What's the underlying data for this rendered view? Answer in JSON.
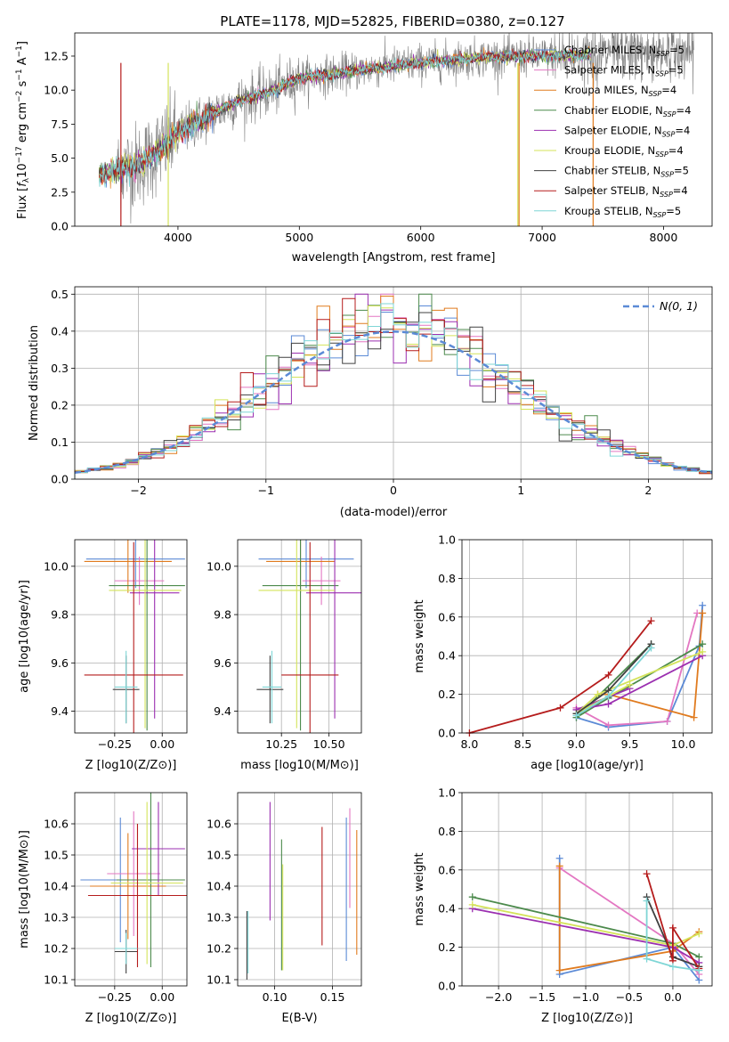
{
  "figure": {
    "title": "PLATE=1178, MJD=52825, FIBERID=0380, z=0.127"
  },
  "colors": {
    "Chabrier MILES": "#5b8ad6",
    "Salpeter MILES": "#e377c2",
    "Kroupa MILES": "#e07b1f",
    "Chabrier ELODIE": "#4c8a4c",
    "Salpeter ELODIE": "#9b2fb0",
    "Kroupa ELODIE": "#d4e35a",
    "Chabrier STELIB": "#404040",
    "Salpeter STELIB": "#b51c1c",
    "Kroupa STELIB": "#7fd6d6",
    "normal": "#5b8ad6",
    "data": "#808080"
  },
  "legend_spectrum": [
    {
      "model": "Chabrier MILES",
      "nssp": "5"
    },
    {
      "model": "Salpeter MILES",
      "nssp": "5"
    },
    {
      "model": "Kroupa MILES",
      "nssp": "4"
    },
    {
      "model": "Chabrier ELODIE",
      "nssp": "4"
    },
    {
      "model": "Salpeter ELODIE",
      "nssp": "4"
    },
    {
      "model": "Kroupa ELODIE",
      "nssp": "4"
    },
    {
      "model": "Chabrier STELIB",
      "nssp": "5"
    },
    {
      "model": "Salpeter STELIB",
      "nssp": "4"
    },
    {
      "model": "Kroupa STELIB",
      "nssp": "5"
    }
  ],
  "chart_data": [
    {
      "type": "line",
      "panel": "spectrum",
      "title": "PLATE=1178, MJD=52825, FIBERID=0380, z=0.127",
      "xlabel": "wavelength [Angstrom, rest frame]",
      "ylabel": "Flux [f_λ 10^-17 erg cm^-2 s^-1 A^-1]",
      "xlim": [
        3150,
        8400
      ],
      "ylim": [
        0,
        14.2
      ],
      "xticks": [
        4000,
        5000,
        6000,
        7000,
        8000
      ],
      "yticks": [
        0.0,
        2.5,
        5.0,
        7.5,
        10.0,
        12.5
      ],
      "continuum": [
        [
          3400,
          3.9
        ],
        [
          3700,
          4.6
        ],
        [
          3900,
          6.0
        ],
        [
          4000,
          6.8
        ],
        [
          4200,
          7.9
        ],
        [
          4500,
          9.2
        ],
        [
          4800,
          10.0
        ],
        [
          5000,
          10.9
        ],
        [
          5300,
          11.2
        ],
        [
          5600,
          11.6
        ],
        [
          6000,
          12.0
        ],
        [
          6500,
          12.4
        ],
        [
          7000,
          12.5
        ],
        [
          7500,
          12.6
        ],
        [
          8000,
          12.8
        ],
        [
          8200,
          12.7
        ]
      ],
      "model_range": [
        3350,
        7400
      ],
      "data_range": [
        3500,
        8250
      ]
    },
    {
      "type": "histogram",
      "panel": "residuals",
      "xlabel": "(data-model)/error",
      "ylabel": "Normed distribution",
      "xlim": [
        -2.5,
        2.5
      ],
      "ylim": [
        0,
        0.52
      ],
      "xticks": [
        -2,
        -1,
        0,
        1,
        2
      ],
      "yticks": [
        0.0,
        0.1,
        0.2,
        0.3,
        0.4,
        0.5
      ],
      "bin_width": 0.1,
      "normal_label": "N(0, 1)",
      "grid": true,
      "legend": "top-right"
    },
    {
      "type": "errorbar",
      "panel": "age-vs-Z",
      "xlabel": "Z [log10(Z/Z⊙)]",
      "ylabel": "age  [log10(age/yr)]",
      "xlim": [
        -0.46,
        0.13
      ],
      "ylim": [
        9.31,
        10.11
      ],
      "xticks": [
        -0.25,
        0.0
      ],
      "yticks": [
        9.4,
        9.6,
        9.8,
        10.0
      ],
      "points": [
        {
          "model": "Chabrier MILES",
          "x": -0.14,
          "xerr": 0.26,
          "y": 10.03,
          "yerr": 0.12
        },
        {
          "model": "Salpeter MILES",
          "x": -0.12,
          "xerr": 0.13,
          "y": 9.94,
          "yerr": 0.1
        },
        {
          "model": "Kroupa MILES",
          "x": -0.18,
          "xerr": 0.23,
          "y": 10.02,
          "yerr": 0.13
        },
        {
          "model": "Chabrier ELODIE",
          "x": -0.08,
          "xerr": 0.2,
          "y": 9.92,
          "yerr": 0.6
        },
        {
          "model": "Salpeter ELODIE",
          "x": -0.04,
          "xerr": 0.13,
          "y": 9.89,
          "yerr": 0.52
        },
        {
          "model": "Kroupa ELODIE",
          "x": -0.09,
          "xerr": 0.19,
          "y": 9.9,
          "yerr": 0.57
        },
        {
          "model": "Chabrier STELIB",
          "x": -0.19,
          "xerr": 0.07,
          "y": 9.49,
          "yerr": 0.14
        },
        {
          "model": "Salpeter STELIB",
          "x": -0.15,
          "xerr": 0.26,
          "y": 9.55,
          "yerr": 0.55
        },
        {
          "model": "Kroupa STELIB",
          "x": -0.19,
          "xerr": 0.06,
          "y": 9.5,
          "yerr": 0.15
        }
      ]
    },
    {
      "type": "errorbar",
      "panel": "age-vs-mass",
      "xlabel": "mass [log10(M/M⊙)]",
      "ylabel": "",
      "xlim": [
        10.02,
        10.67
      ],
      "ylim": [
        9.31,
        10.11
      ],
      "xticks": [
        10.25,
        10.5
      ],
      "yticks": [
        9.4,
        9.6,
        9.8,
        10.0
      ],
      "points": [
        {
          "model": "Chabrier MILES",
          "x": 10.38,
          "xerr": 0.25,
          "y": 10.03,
          "yerr": 0.12
        },
        {
          "model": "Salpeter MILES",
          "x": 10.46,
          "xerr": 0.1,
          "y": 9.94,
          "yerr": 0.1
        },
        {
          "model": "Kroupa MILES",
          "x": 10.35,
          "xerr": 0.18,
          "y": 10.02,
          "yerr": 0.13
        },
        {
          "model": "Chabrier ELODIE",
          "x": 10.35,
          "xerr": 0.2,
          "y": 9.92,
          "yerr": 0.6
        },
        {
          "model": "Salpeter ELODIE",
          "x": 10.53,
          "xerr": 0.15,
          "y": 9.89,
          "yerr": 0.52
        },
        {
          "model": "Kroupa ELODIE",
          "x": 10.33,
          "xerr": 0.2,
          "y": 9.9,
          "yerr": 0.57
        },
        {
          "model": "Chabrier STELIB",
          "x": 10.19,
          "xerr": 0.07,
          "y": 9.49,
          "yerr": 0.14
        },
        {
          "model": "Salpeter STELIB",
          "x": 10.4,
          "xerr": 0.15,
          "y": 9.55,
          "yerr": 0.55
        },
        {
          "model": "Kroupa STELIB",
          "x": 10.2,
          "xerr": 0.05,
          "y": 9.5,
          "yerr": 0.15
        }
      ]
    },
    {
      "type": "line",
      "panel": "weight-vs-age",
      "xlabel": "age  [log10(age/yr)]",
      "ylabel": "mass weight",
      "xlim": [
        7.93,
        10.27
      ],
      "ylim": [
        0,
        1
      ],
      "xticks": [
        8.0,
        8.5,
        9.0,
        9.5,
        10.0
      ],
      "yticks": [
        0.0,
        0.2,
        0.4,
        0.6,
        0.8,
        1.0
      ],
      "series": [
        {
          "model": "Chabrier MILES",
          "x": [
            10.18,
            10.15,
            9.85,
            9.3,
            9.0
          ],
          "y": [
            0.66,
            0.45,
            0.06,
            0.03,
            0.08
          ]
        },
        {
          "model": "Salpeter MILES",
          "x": [
            10.13,
            9.85,
            9.3,
            9.0
          ],
          "y": [
            0.62,
            0.06,
            0.04,
            0.13
          ]
        },
        {
          "model": "Kroupa MILES",
          "x": [
            10.18,
            10.1,
            9.3,
            9.2
          ],
          "y": [
            0.62,
            0.08,
            0.2,
            0.2
          ]
        },
        {
          "model": "Chabrier ELODIE",
          "x": [
            10.18,
            9.3,
            9.0,
            9.7
          ],
          "y": [
            0.46,
            0.18,
            0.08,
            0.46
          ]
        },
        {
          "model": "Salpeter ELODIE",
          "x": [
            10.18,
            9.3,
            9.0,
            9.5
          ],
          "y": [
            0.4,
            0.15,
            0.12,
            0.23
          ]
        },
        {
          "model": "Kroupa ELODIE",
          "x": [
            10.18,
            9.2,
            9.0,
            9.5
          ],
          "y": [
            0.42,
            0.2,
            0.1,
            0.25
          ]
        },
        {
          "model": "Chabrier STELIB",
          "x": [
            9.7,
            9.3,
            9.0
          ],
          "y": [
            0.46,
            0.22,
            0.1
          ]
        },
        {
          "model": "Salpeter STELIB",
          "x": [
            9.7,
            9.3,
            8.85,
            8.0
          ],
          "y": [
            0.58,
            0.3,
            0.13,
            0.0
          ]
        },
        {
          "model": "Kroupa STELIB",
          "x": [
            9.7,
            9.3,
            9.0
          ],
          "y": [
            0.44,
            0.19,
            0.09
          ]
        }
      ]
    },
    {
      "type": "errorbar",
      "panel": "mass-vs-Z",
      "xlabel": "Z [log10(Z/Z⊙)]",
      "ylabel": "mass [log10(M/M⊙)]",
      "xlim": [
        -0.46,
        0.13
      ],
      "ylim": [
        10.08,
        10.7
      ],
      "xticks": [
        -0.25,
        0.0
      ],
      "yticks": [
        10.1,
        10.2,
        10.3,
        10.4,
        10.5,
        10.6
      ],
      "points": [
        {
          "model": "Chabrier MILES",
          "x": -0.22,
          "xerr": 0.21,
          "y": 10.42,
          "yerr": 0.2
        },
        {
          "model": "Salpeter MILES",
          "x": -0.15,
          "xerr": 0.14,
          "y": 10.44,
          "yerr": 0.2
        },
        {
          "model": "Kroupa MILES",
          "x": -0.18,
          "xerr": 0.2,
          "y": 10.4,
          "yerr": 0.17
        },
        {
          "model": "Chabrier ELODIE",
          "x": -0.06,
          "xerr": 0.18,
          "y": 10.42,
          "yerr": 0.28
        },
        {
          "model": "Salpeter ELODIE",
          "x": -0.02,
          "xerr": 0.14,
          "y": 10.52,
          "yerr": 0.15
        },
        {
          "model": "Kroupa ELODIE",
          "x": -0.08,
          "xerr": 0.19,
          "y": 10.41,
          "yerr": 0.26
        },
        {
          "model": "Chabrier STELIB",
          "x": -0.19,
          "xerr": 0.06,
          "y": 10.19,
          "yerr": 0.07
        },
        {
          "model": "Salpeter STELIB",
          "x": -0.13,
          "xerr": 0.26,
          "y": 10.37,
          "yerr": 0.23
        },
        {
          "model": "Kroupa STELIB",
          "x": -0.19,
          "xerr": 0.06,
          "y": 10.2,
          "yerr": 0.05
        }
      ]
    },
    {
      "type": "errorbar",
      "panel": "mass-vs-ebv",
      "xlabel": "E(B-V)",
      "ylabel": "",
      "xlim": [
        0.068,
        0.175
      ],
      "ylim": [
        10.08,
        10.7
      ],
      "xticks": [
        0.1,
        0.15
      ],
      "yticks": [
        10.1,
        10.2,
        10.3,
        10.4,
        10.5,
        10.6
      ],
      "points": [
        {
          "model": "Chabrier MILES",
          "x": 0.162,
          "y": 10.39,
          "yerr": 0.23
        },
        {
          "model": "Salpeter MILES",
          "x": 0.165,
          "y": 10.49,
          "yerr": 0.16
        },
        {
          "model": "Kroupa MILES",
          "x": 0.171,
          "y": 10.38,
          "yerr": 0.2
        },
        {
          "model": "Chabrier ELODIE",
          "x": 0.106,
          "y": 10.34,
          "yerr": 0.21
        },
        {
          "model": "Salpeter ELODIE",
          "x": 0.096,
          "y": 10.48,
          "yerr": 0.19
        },
        {
          "model": "Kroupa ELODIE",
          "x": 0.107,
          "y": 10.3,
          "yerr": 0.17
        },
        {
          "model": "Chabrier STELIB",
          "x": 0.076,
          "y": 10.21,
          "yerr": 0.11
        },
        {
          "model": "Salpeter STELIB",
          "x": 0.141,
          "y": 10.4,
          "yerr": 0.19
        },
        {
          "model": "Kroupa STELIB",
          "x": 0.077,
          "y": 10.22,
          "yerr": 0.1
        }
      ]
    },
    {
      "type": "line",
      "panel": "weight-vs-Z",
      "xlabel": "Z [log10(Z/Z⊙)]",
      "ylabel": "mass weight",
      "xlim": [
        -2.42,
        0.45
      ],
      "ylim": [
        0,
        1
      ],
      "xticks": [
        -2.0,
        -1.5,
        -1.0,
        -0.5,
        0.0
      ],
      "yticks": [
        0.0,
        0.2,
        0.4,
        0.6,
        0.8,
        1.0
      ],
      "series": [
        {
          "model": "Chabrier MILES",
          "x": [
            -1.3,
            -1.3,
            0.0,
            0.3
          ],
          "y": [
            0.66,
            0.06,
            0.2,
            0.03
          ]
        },
        {
          "model": "Salpeter MILES",
          "x": [
            -1.3,
            0.0,
            0.3
          ],
          "y": [
            0.61,
            0.22,
            0.06
          ]
        },
        {
          "model": "Kroupa MILES",
          "x": [
            -1.3,
            -1.3,
            0.0,
            0.3
          ],
          "y": [
            0.62,
            0.08,
            0.18,
            0.28
          ]
        },
        {
          "model": "Chabrier ELODIE",
          "x": [
            -2.3,
            0.0,
            0.3
          ],
          "y": [
            0.46,
            0.22,
            0.15
          ]
        },
        {
          "model": "Salpeter ELODIE",
          "x": [
            -2.3,
            0.0,
            0.3
          ],
          "y": [
            0.4,
            0.2,
            0.12
          ]
        },
        {
          "model": "Kroupa ELODIE",
          "x": [
            -2.3,
            0.0,
            0.3
          ],
          "y": [
            0.42,
            0.21,
            0.27
          ]
        },
        {
          "model": "Chabrier STELIB",
          "x": [
            -0.3,
            0.0,
            0.3
          ],
          "y": [
            0.46,
            0.15,
            0.1
          ]
        },
        {
          "model": "Salpeter STELIB",
          "x": [
            -0.3,
            0.0,
            0.0,
            0.3
          ],
          "y": [
            0.58,
            0.13,
            0.3,
            0.09
          ]
        },
        {
          "model": "Kroupa STELIB",
          "x": [
            -0.3,
            -0.3,
            0.0,
            0.3
          ],
          "y": [
            0.44,
            0.14,
            0.1,
            0.08
          ]
        }
      ]
    }
  ]
}
